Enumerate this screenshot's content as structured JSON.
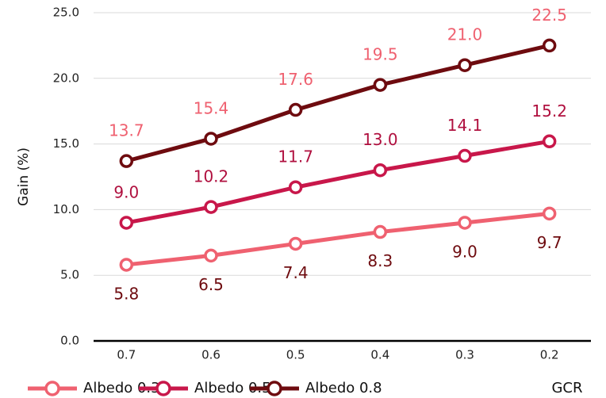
{
  "chart_data": {
    "type": "line",
    "y_label": "Gain (%)",
    "x_label": "GCR",
    "categories": [
      "0.7",
      "0.6",
      "0.5",
      "0.4",
      "0.3",
      "0.2"
    ],
    "series": [
      {
        "name": "Albedo 0.3",
        "color": "#ef6170",
        "label_color": "#6e0b0f",
        "values": [
          5.8,
          6.5,
          7.4,
          8.3,
          9.0,
          9.7
        ],
        "value_labels": [
          "5.8",
          "6.5",
          "7.4",
          "8.3",
          "9.0",
          "9.7"
        ]
      },
      {
        "name": "Albedo 0.5",
        "color": "#c8174a",
        "label_color": "#b0103f",
        "values": [
          9.0,
          10.2,
          11.7,
          13.0,
          14.1,
          15.2
        ],
        "value_labels": [
          "9.0",
          "10.2",
          "11.7",
          "13.0",
          "14.1",
          "15.2"
        ]
      },
      {
        "name": "Albedo 0.8",
        "color": "#6e0b0f",
        "label_color": "#ef6170",
        "values": [
          13.7,
          15.4,
          17.6,
          19.5,
          21.0,
          22.5
        ],
        "value_labels": [
          "13.7",
          "15.4",
          "17.6",
          "19.5",
          "21.0",
          "22.5"
        ]
      }
    ],
    "ylim": [
      0,
      25
    ],
    "yticks": [
      {
        "value": 0,
        "label": "0.0"
      },
      {
        "value": 5,
        "label": "5.0"
      },
      {
        "value": 10,
        "label": "10.0"
      },
      {
        "value": 15,
        "label": "15.0"
      },
      {
        "value": 20,
        "label": "20.0"
      },
      {
        "value": 25,
        "label": "25.0"
      }
    ],
    "grid": true
  }
}
